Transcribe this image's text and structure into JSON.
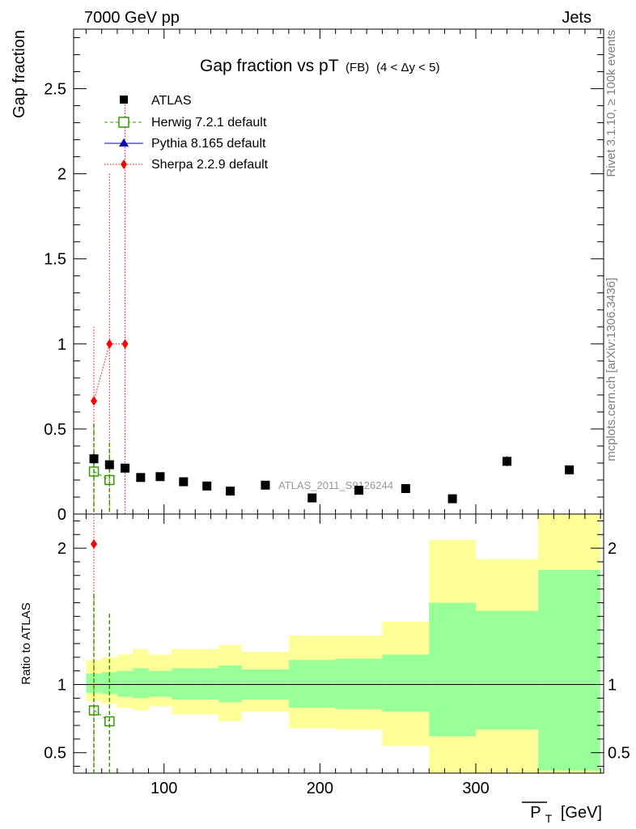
{
  "header": {
    "left": "7000 GeV pp",
    "right": "Jets"
  },
  "side_labels": {
    "rivet": "Rivet 3.1.10, ≥ 100k events",
    "mcplots": "mcplots.cern.ch [arXiv:1306.3436]"
  },
  "watermark": "ATLAS_2011_S9126244",
  "colors": {
    "atlas": "#000000",
    "herwig": "#339900",
    "pythia": "#0000cc",
    "sherpa": "#ff0000",
    "band_outer": "#ffff99",
    "band_inner": "#99ff99"
  },
  "legend": [
    {
      "key": "atlas",
      "label": "ATLAS"
    },
    {
      "key": "herwig",
      "label": "Herwig 7.2.1 default"
    },
    {
      "key": "pythia",
      "label": "Pythia 8.165 default"
    },
    {
      "key": "sherpa",
      "label": "Sherpa 2.2.9 default"
    }
  ],
  "chart_data": [
    {
      "type": "scatter",
      "title_main": "Gap fraction vs pT",
      "title_sub1": "(FB)",
      "title_sub2": "(4 < Δy < 5)",
      "ylabel": "Gap fraction",
      "xlim": [
        42,
        382
      ],
      "ylim": [
        0,
        2.85
      ],
      "yticks": [
        {
          "v": 0,
          "label": "0"
        },
        {
          "v": 0.5,
          "label": "0.5"
        },
        {
          "v": 1,
          "label": "1"
        },
        {
          "v": 1.5,
          "label": "1.5"
        },
        {
          "v": 2,
          "label": "2"
        },
        {
          "v": 2.5,
          "label": "2.5"
        }
      ],
      "atlas": {
        "x": [
          55,
          65,
          75,
          85,
          97.5,
          112.5,
          127.5,
          142.5,
          165,
          195,
          225,
          255,
          285,
          320,
          360
        ],
        "y": [
          0.325,
          0.29,
          0.27,
          0.215,
          0.22,
          0.19,
          0.165,
          0.135,
          0.17,
          0.095,
          0.14,
          0.15,
          0.09,
          0.31,
          0.26
        ],
        "yerr": [
          0.03,
          0.025,
          0.02,
          0.02,
          0.02,
          0.02,
          0.015,
          0.015,
          0.015,
          0.015,
          0.015,
          0.02,
          0.02,
          0.03,
          0.025
        ]
      },
      "herwig": {
        "x": [
          55,
          65
        ],
        "y": [
          0.25,
          0.2
        ],
        "ylow": [
          0.0,
          0.0
        ],
        "yhigh": [
          0.53,
          0.42
        ]
      },
      "sherpa": {
        "x": [
          55,
          65,
          75
        ],
        "y": [
          0.665,
          1.0,
          1.0
        ],
        "ylow": [
          0.0,
          0.0,
          0.0
        ],
        "yhigh": [
          1.1,
          2.0,
          2.44
        ]
      }
    },
    {
      "type": "area",
      "ylabel": "Ratio to ATLAS",
      "xlabel": "P",
      "xlabel_sub": "T",
      "xlabel_unit": "[GeV]",
      "xlim": [
        42,
        382
      ],
      "ylim": [
        0.35,
        2.25
      ],
      "xticks": [
        {
          "v": 100,
          "label": "100"
        },
        {
          "v": 200,
          "label": "200"
        },
        {
          "v": 300,
          "label": "300"
        }
      ],
      "yticks": [
        {
          "v": 0.5,
          "label": "0.5"
        },
        {
          "v": 1,
          "label": "1"
        },
        {
          "v": 2,
          "label": "2"
        }
      ],
      "bands": [
        {
          "x0": 50,
          "x1": 60,
          "inner": [
            0.94,
            1.08
          ],
          "outer": [
            0.88,
            1.18
          ]
        },
        {
          "x0": 60,
          "x1": 70,
          "inner": [
            0.93,
            1.09
          ],
          "outer": [
            0.86,
            1.2
          ]
        },
        {
          "x0": 70,
          "x1": 80,
          "inner": [
            0.91,
            1.1
          ],
          "outer": [
            0.83,
            1.22
          ]
        },
        {
          "x0": 80,
          "x1": 90,
          "inner": [
            0.9,
            1.12
          ],
          "outer": [
            0.81,
            1.26
          ]
        },
        {
          "x0": 90,
          "x1": 105,
          "inner": [
            0.91,
            1.1
          ],
          "outer": [
            0.84,
            1.22
          ]
        },
        {
          "x0": 105,
          "x1": 120,
          "inner": [
            0.89,
            1.12
          ],
          "outer": [
            0.78,
            1.26
          ]
        },
        {
          "x0": 120,
          "x1": 135,
          "inner": [
            0.89,
            1.12
          ],
          "outer": [
            0.78,
            1.26
          ]
        },
        {
          "x0": 135,
          "x1": 150,
          "inner": [
            0.87,
            1.14
          ],
          "outer": [
            0.73,
            1.29
          ]
        },
        {
          "x0": 150,
          "x1": 180,
          "inner": [
            0.89,
            1.11
          ],
          "outer": [
            0.8,
            1.24
          ]
        },
        {
          "x0": 180,
          "x1": 210,
          "inner": [
            0.83,
            1.18
          ],
          "outer": [
            0.68,
            1.36
          ]
        },
        {
          "x0": 210,
          "x1": 240,
          "inner": [
            0.82,
            1.19
          ],
          "outer": [
            0.67,
            1.36
          ]
        },
        {
          "x0": 240,
          "x1": 270,
          "inner": [
            0.8,
            1.22
          ],
          "outer": [
            0.55,
            1.46
          ]
        },
        {
          "x0": 270,
          "x1": 300,
          "inner": [
            0.62,
            1.6
          ],
          "outer": [
            0.35,
            2.06
          ]
        },
        {
          "x0": 300,
          "x1": 340,
          "inner": [
            0.67,
            1.54
          ],
          "outer": [
            0.35,
            1.92
          ]
        },
        {
          "x0": 340,
          "x1": 380,
          "inner": [
            0.37,
            1.84
          ],
          "outer": [
            0.35,
            2.25
          ]
        }
      ],
      "reference": 1,
      "herwig": {
        "x": [
          55,
          65
        ],
        "y": [
          0.81,
          0.73
        ],
        "ylow": [
          0.35,
          0.35
        ],
        "yhigh": [
          1.66,
          1.52
        ]
      },
      "sherpa": {
        "x": [
          55
        ],
        "y": [
          2.03
        ],
        "ylow": [
          0.35
        ],
        "yhigh": [
          2.25
        ]
      }
    }
  ]
}
